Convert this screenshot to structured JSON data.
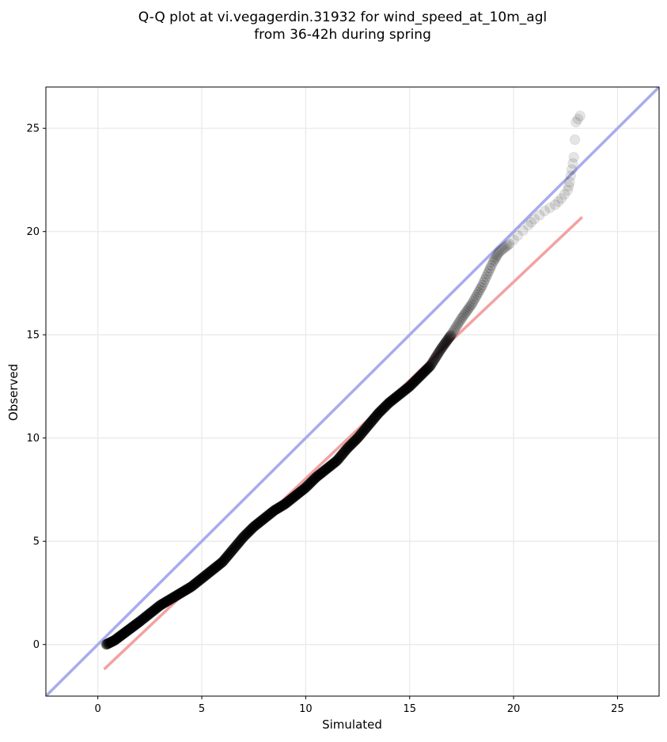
{
  "chart_data": {
    "type": "scatter",
    "title_line1": "Q-Q plot at vi.vegagerdin.31932 for wind_speed_at_10m_agl",
    "title_line2": "from 36-42h during spring",
    "xlabel": "Simulated",
    "ylabel": "Observed",
    "xlim": [
      -2.5,
      27
    ],
    "ylim": [
      -2.5,
      27
    ],
    "grid": true,
    "xticks": [
      0,
      5,
      10,
      15,
      20,
      25
    ],
    "yticks": [
      0,
      5,
      10,
      15,
      20,
      25
    ],
    "identity_line": {
      "color": "#aaaaee",
      "points": [
        [
          -2.5,
          -2.5
        ],
        [
          27,
          27
        ]
      ]
    },
    "fit_line": {
      "color": "#f2a2a2",
      "points": [
        [
          0.3,
          -1.2
        ],
        [
          23.3,
          20.7
        ]
      ]
    },
    "quantile_curve": [
      [
        0.4,
        0.0
      ],
      [
        0.8,
        0.2
      ],
      [
        1.2,
        0.5
      ],
      [
        1.6,
        0.8
      ],
      [
        2.0,
        1.1
      ],
      [
        2.5,
        1.5
      ],
      [
        3.0,
        1.9
      ],
      [
        3.5,
        2.2
      ],
      [
        4.0,
        2.5
      ],
      [
        4.5,
        2.8
      ],
      [
        5.0,
        3.2
      ],
      [
        5.5,
        3.6
      ],
      [
        6.0,
        4.0
      ],
      [
        6.5,
        4.6
      ],
      [
        7.0,
        5.2
      ],
      [
        7.5,
        5.7
      ],
      [
        8.0,
        6.1
      ],
      [
        8.5,
        6.5
      ],
      [
        9.0,
        6.8
      ],
      [
        9.5,
        7.2
      ],
      [
        10.0,
        7.6
      ],
      [
        10.5,
        8.1
      ],
      [
        11.0,
        8.5
      ],
      [
        11.5,
        8.9
      ],
      [
        12.0,
        9.5
      ],
      [
        12.5,
        10.0
      ],
      [
        13.0,
        10.6
      ],
      [
        13.5,
        11.2
      ],
      [
        14.0,
        11.7
      ],
      [
        14.5,
        12.1
      ],
      [
        15.0,
        12.5
      ],
      [
        15.5,
        13.0
      ],
      [
        16.0,
        13.5
      ],
      [
        16.5,
        14.3
      ],
      [
        17.0,
        15.0
      ],
      [
        17.5,
        15.8
      ],
      [
        18.0,
        16.5
      ],
      [
        18.5,
        17.4
      ],
      [
        19.0,
        18.5
      ],
      [
        19.3,
        19.0
      ],
      [
        19.8,
        19.4
      ],
      [
        20.2,
        19.8
      ],
      [
        20.7,
        20.3
      ],
      [
        21.0,
        20.6
      ],
      [
        21.5,
        21.0
      ],
      [
        22.0,
        21.3
      ],
      [
        22.3,
        21.6
      ],
      [
        22.6,
        22.0
      ],
      [
        22.7,
        22.4
      ],
      [
        22.8,
        23.0
      ],
      [
        22.9,
        23.6
      ],
      [
        23.0,
        25.3
      ],
      [
        23.2,
        25.6
      ]
    ]
  }
}
